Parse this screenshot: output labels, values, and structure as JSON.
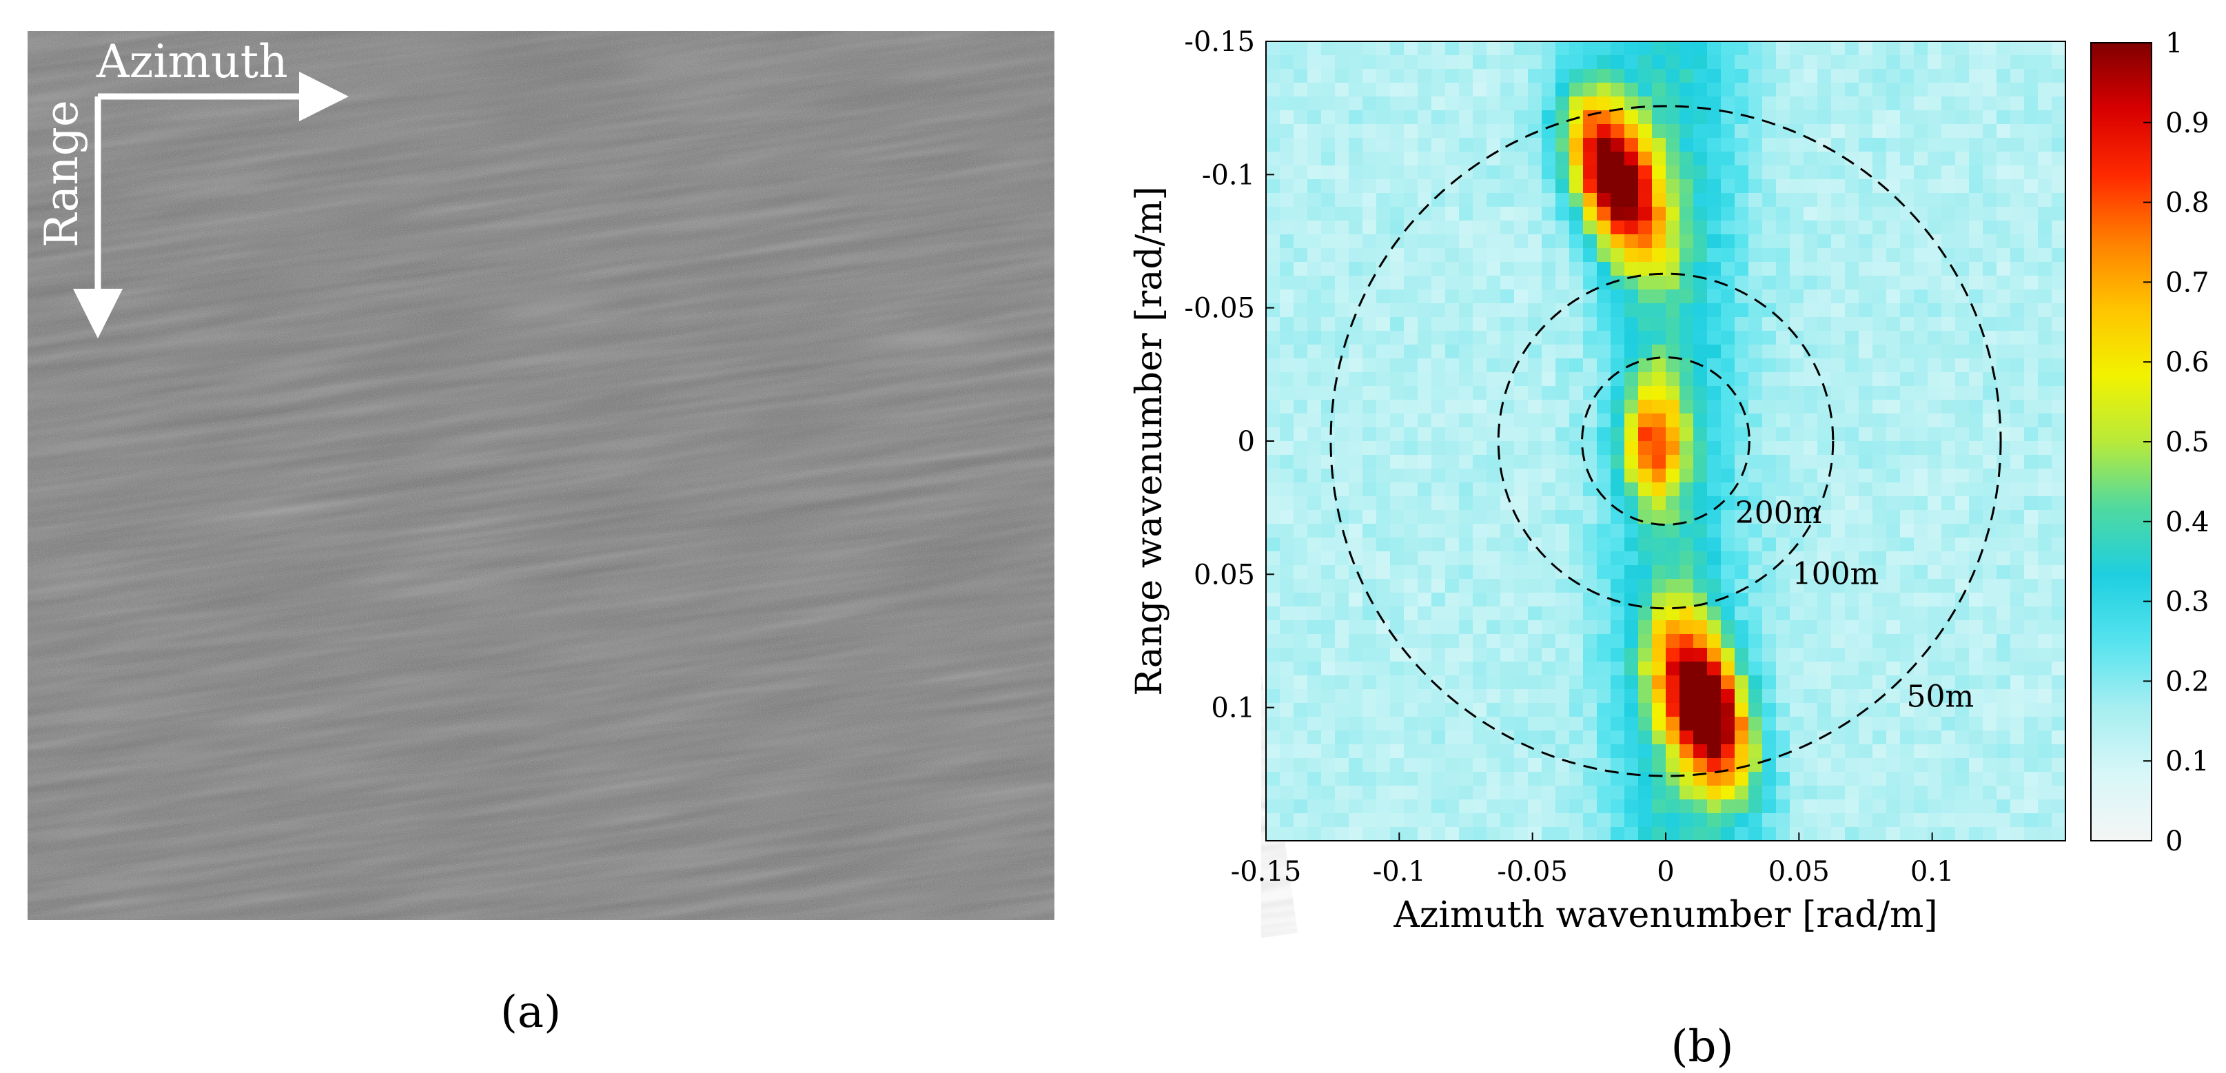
{
  "panel_a": {
    "label": "(a)",
    "arrow_azimuth_label": "Azimuth",
    "arrow_range_label": "Range"
  },
  "panel_b": {
    "label": "(b)",
    "colors": {
      "colormap": [
        "#f5f5f5",
        "#d8f7f8",
        "#a6eef1",
        "#55e3ee",
        "#1ecfe0",
        "#4fd9a0",
        "#b8ea3a",
        "#f2f200",
        "#ffc400",
        "#ff8000",
        "#ff2a00",
        "#d80000",
        "#800000"
      ],
      "ring": "#000000"
    }
  },
  "chart_data": {
    "type": "heatmap",
    "title": "",
    "xlabel": "Azimuth wavenumber [rad/m]",
    "ylabel": "Range wavenumber [rad/m]",
    "xlim": [
      -0.15,
      0.15
    ],
    "ylim": [
      -0.15,
      0.15
    ],
    "y_axis_reversed": true,
    "xticks": [
      "-0.15",
      "-0.1",
      "-0.05",
      "0",
      "0.05",
      "0.1"
    ],
    "yticks": [
      "-0.15",
      "-0.1",
      "-0.05",
      "0",
      "0.05",
      "0.1"
    ],
    "colorbar": {
      "range": [
        0,
        1
      ],
      "ticks": [
        "0",
        "0.1",
        "0.2",
        "0.3",
        "0.4",
        "0.5",
        "0.6",
        "0.7",
        "0.8",
        "0.9",
        "1"
      ]
    },
    "peaks": [
      {
        "x": -0.02,
        "y": -0.1,
        "value": 1.0
      },
      {
        "x": 0.015,
        "y": 0.1,
        "value": 1.0
      },
      {
        "x": -0.005,
        "y": 0.0,
        "value": 0.6
      }
    ],
    "rings": [
      {
        "label": "200m",
        "wavelength_m": 200,
        "radius": 0.0314
      },
      {
        "label": "100m",
        "wavelength_m": 100,
        "radius": 0.0628
      },
      {
        "label": "50m",
        "wavelength_m": 50,
        "radius": 0.1257
      }
    ]
  }
}
